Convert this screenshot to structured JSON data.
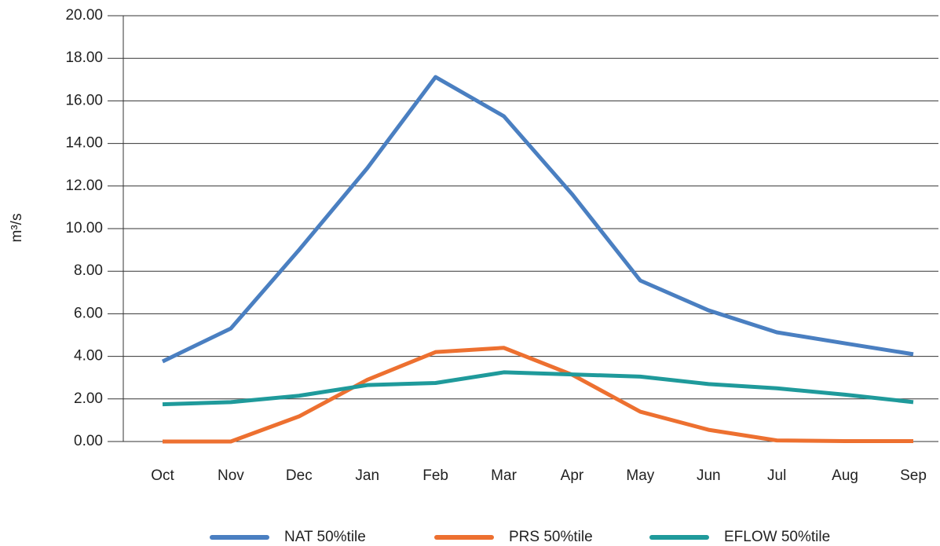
{
  "chart_data": {
    "type": "line",
    "y_label": "m³/s",
    "categories": [
      "Oct",
      "Nov",
      "Dec",
      "Jan",
      "Feb",
      "Mar",
      "Apr",
      "May",
      "Jun",
      "Jul",
      "Aug",
      "Sep"
    ],
    "series": [
      {
        "name": "NAT 50%tile",
        "color": "#4a7fc1",
        "values": [
          3.76,
          5.31,
          9.0,
          12.84,
          17.12,
          15.28,
          11.62,
          7.56,
          6.16,
          5.13,
          4.61,
          4.1
        ]
      },
      {
        "name": "PRS 50%tile",
        "color": "#ed7030",
        "values": [
          0,
          0,
          1.18,
          2.9,
          4.2,
          4.4,
          3.14,
          1.4,
          0.55,
          0.05,
          0.02,
          0.02
        ]
      },
      {
        "name": "EFLOW 50%tile",
        "color": "#1f9a9b",
        "values": [
          1.75,
          1.85,
          2.15,
          2.65,
          2.75,
          3.25,
          3.15,
          3.05,
          2.7,
          2.5,
          2.2,
          1.85
        ]
      }
    ],
    "ylim": [
      0,
      20
    ],
    "yticks": [
      {
        "value": 0,
        "label": "0.00"
      },
      {
        "value": 2,
        "label": "2.00"
      },
      {
        "value": 4,
        "label": "4.00"
      },
      {
        "value": 6,
        "label": "6.00"
      },
      {
        "value": 8,
        "label": "8.00"
      },
      {
        "value": 10,
        "label": "10.00"
      },
      {
        "value": 12,
        "label": "12.00"
      },
      {
        "value": 14,
        "label": "14.00"
      },
      {
        "value": 16,
        "label": "16.00"
      },
      {
        "value": 18,
        "label": "18.00"
      },
      {
        "value": 20,
        "label": "20.00"
      }
    ],
    "grid": true,
    "legend": "bottom"
  }
}
